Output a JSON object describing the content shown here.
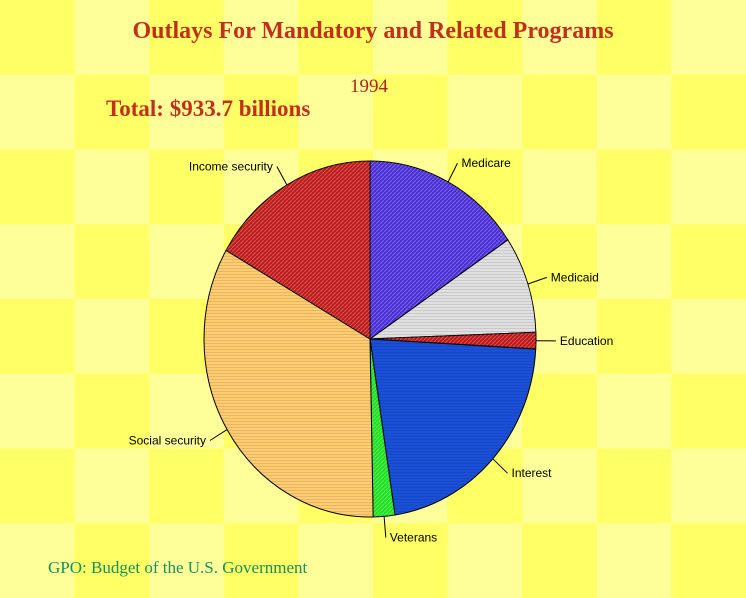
{
  "title": "Outlays For Mandatory and Related Programs",
  "year": "1994",
  "total_label": "Total: $933.7 billions",
  "source": "GPO: Budget of the U.S. Government",
  "chart_data": {
    "type": "pie",
    "title": "Outlays For Mandatory and Related Programs",
    "subtitle": "1994",
    "total": "Total: $933.7 billions",
    "slices": [
      {
        "label": "Medicare",
        "value": 15.6,
        "color": "#4a2fd6"
      },
      {
        "label": "Medicaid",
        "value": 8.8,
        "color": "#e0e0e0"
      },
      {
        "label": "Education",
        "value": 1.5,
        "color": "#c01818"
      },
      {
        "label": "Interest",
        "value": 21.7,
        "color": "#1a4fd8"
      },
      {
        "label": "Veterans",
        "value": 2.1,
        "color": "#22e022"
      },
      {
        "label": "Social security",
        "value": 33.6,
        "color": "#ffcc70"
      },
      {
        "label": "Income security",
        "value": 16.7,
        "color": "#c01c1c"
      }
    ]
  }
}
